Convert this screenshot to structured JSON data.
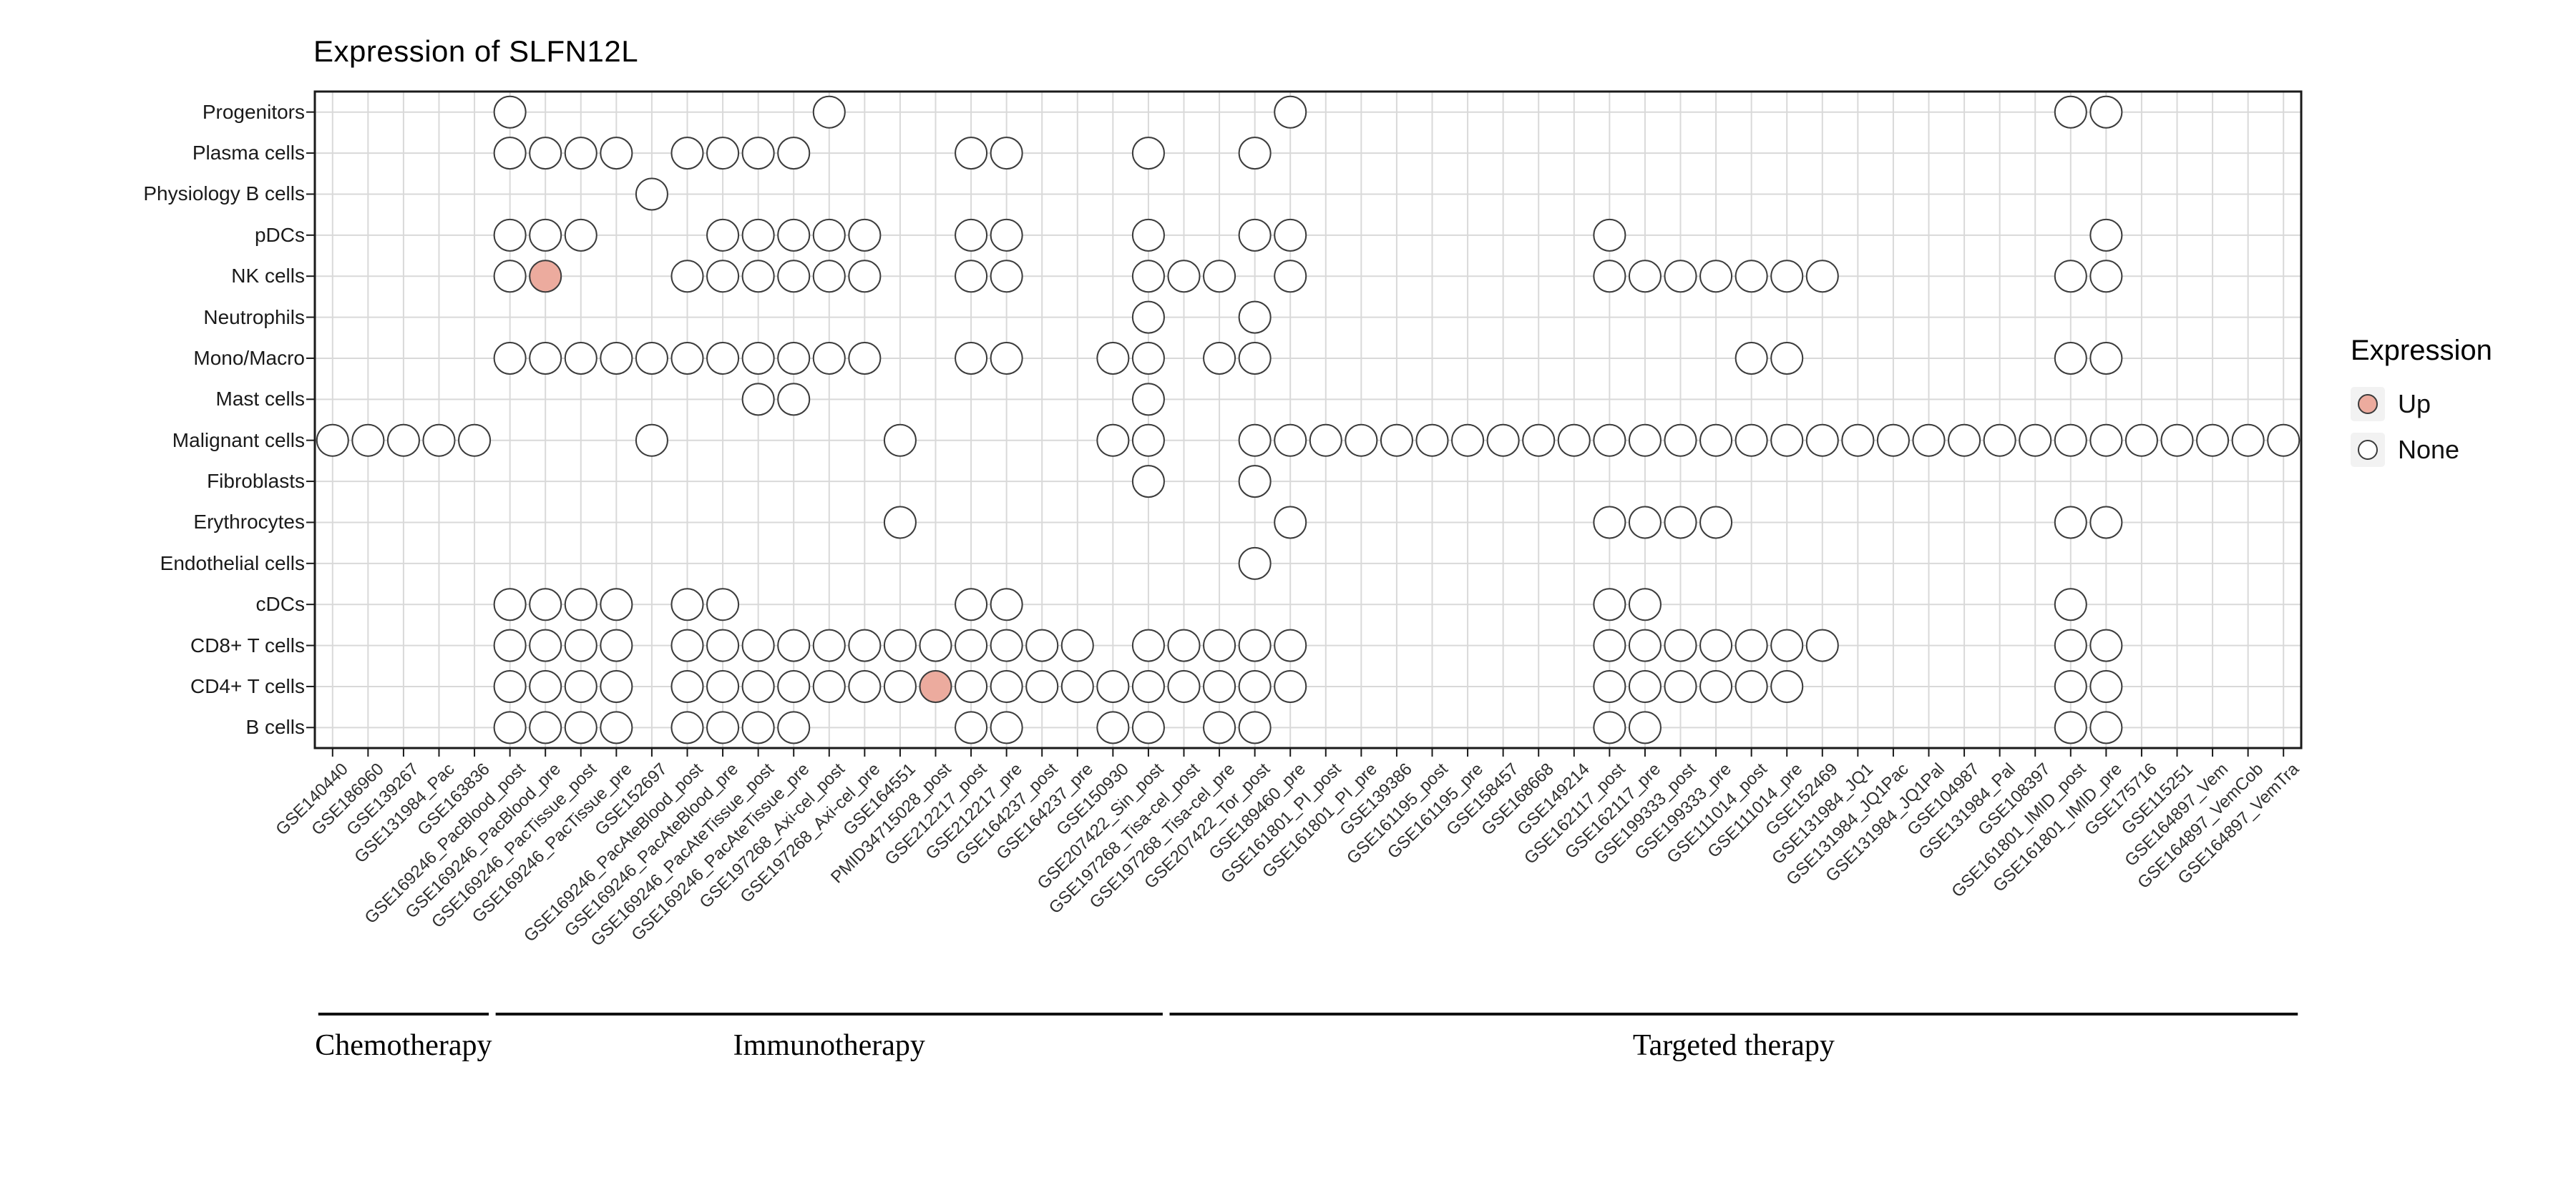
{
  "chart_data": {
    "type": "scatter",
    "subtype": "categorical-dot-matrix",
    "title": "Expression of SLFN12L",
    "legend": {
      "title": "Expression",
      "position": "right",
      "items": [
        {
          "label": "Up",
          "color": "#ecab9e"
        },
        {
          "label": "None",
          "color": "#ffffff"
        }
      ]
    },
    "rows": [
      "Progenitors",
      "Plasma cells",
      "Physiology B cells",
      "pDCs",
      "NK cells",
      "Neutrophils",
      "Mono/Macro",
      "Mast cells",
      "Malignant cells",
      "Fibroblasts",
      "Erythrocytes",
      "Endothelial cells",
      "cDCs",
      "CD8+ T cells",
      "CD4+ T cells",
      "B cells"
    ],
    "columns": [
      "GSE140440",
      "GSE186960",
      "GSE139267",
      "GSE131984_Pac",
      "GSE163836",
      "GSE169246_PacBlood_post",
      "GSE169246_PacBlood_pre",
      "GSE169246_PacTissue_post",
      "GSE169246_PacTissue_pre",
      "GSE152697",
      "GSE169246_PacAteBlood_post",
      "GSE169246_PacAteBlood_pre",
      "GSE169246_PacAteTissue_post",
      "GSE169246_PacAteTissue_pre",
      "GSE197268_Axi-cel_post",
      "GSE197268_Axi-cel_pre",
      "GSE164551",
      "PMID34715028_post",
      "GSE212217_post",
      "GSE212217_pre",
      "GSE164237_post",
      "GSE164237_pre",
      "GSE150930",
      "GSE207422_Sin_post",
      "GSE197268_Tisa-cel_post",
      "GSE197268_Tisa-cel_pre",
      "GSE207422_Tor_post",
      "GSE189460_pre",
      "GSE161801_PI_post",
      "GSE161801_PI_pre",
      "GSE139386",
      "GSE161195_post",
      "GSE161195_pre",
      "GSE158457",
      "GSE168668",
      "GSE149214",
      "GSE162117_post",
      "GSE162117_pre",
      "GSE199333_post",
      "GSE199333_pre",
      "GSE111014_post",
      "GSE111014_pre",
      "GSE152469",
      "GSE131984_JQ1",
      "GSE131984_JQ1Pac",
      "GSE131984_JQ1Pal",
      "GSE104987",
      "GSE131984_Pal",
      "GSE108397",
      "GSE161801_IMID_post",
      "GSE161801_IMID_pre",
      "GSE175716",
      "GSE115251",
      "GSE164897_Vem",
      "GSE164897_VemCob",
      "GSE164897_VemTra"
    ],
    "groups": [
      {
        "label": "Chemotherapy",
        "start": 0,
        "end": 4
      },
      {
        "label": "Immunotherapy",
        "start": 5,
        "end": 23
      },
      {
        "label": "Targeted therapy",
        "start": 24,
        "end": 55
      }
    ],
    "dots": [
      {
        "row": "Progenitors",
        "none": [
          5,
          14,
          27,
          49,
          50
        ],
        "up": []
      },
      {
        "row": "Plasma cells",
        "none": [
          5,
          6,
          7,
          8,
          10,
          11,
          12,
          13,
          18,
          19,
          23,
          26
        ],
        "up": []
      },
      {
        "row": "Physiology B cells",
        "none": [
          9
        ],
        "up": []
      },
      {
        "row": "pDCs",
        "none": [
          5,
          6,
          7,
          11,
          12,
          13,
          14,
          15,
          18,
          19,
          23,
          26,
          27,
          36,
          50
        ],
        "up": []
      },
      {
        "row": "NK cells",
        "none": [
          5,
          10,
          11,
          12,
          13,
          14,
          15,
          18,
          19,
          23,
          24,
          25,
          27,
          36,
          37,
          38,
          39,
          40,
          41,
          42,
          49,
          50
        ],
        "up": [
          6
        ]
      },
      {
        "row": "Neutrophils",
        "none": [
          23,
          26
        ],
        "up": []
      },
      {
        "row": "Mono/Macro",
        "none": [
          5,
          6,
          7,
          8,
          9,
          10,
          11,
          12,
          13,
          14,
          15,
          18,
          19,
          22,
          23,
          25,
          26,
          40,
          41,
          49,
          50
        ],
        "up": []
      },
      {
        "row": "Mast cells",
        "none": [
          12,
          13,
          23
        ],
        "up": []
      },
      {
        "row": "Malignant cells",
        "none": [
          0,
          1,
          2,
          3,
          4,
          9,
          16,
          22,
          23,
          26,
          27,
          28,
          29,
          30,
          31,
          32,
          33,
          34,
          35,
          36,
          37,
          38,
          39,
          40,
          41,
          42,
          43,
          44,
          45,
          46,
          47,
          48,
          49,
          50,
          51,
          52,
          53,
          54,
          55
        ],
        "up": []
      },
      {
        "row": "Fibroblasts",
        "none": [
          23,
          26
        ],
        "up": []
      },
      {
        "row": "Erythrocytes",
        "none": [
          16,
          27,
          36,
          37,
          38,
          39,
          49,
          50
        ],
        "up": []
      },
      {
        "row": "Endothelial cells",
        "none": [
          26
        ],
        "up": []
      },
      {
        "row": "cDCs",
        "none": [
          5,
          6,
          7,
          8,
          10,
          11,
          18,
          19,
          36,
          37,
          49
        ],
        "up": []
      },
      {
        "row": "CD8+ T cells",
        "none": [
          5,
          6,
          7,
          8,
          10,
          11,
          12,
          13,
          14,
          15,
          16,
          17,
          18,
          19,
          20,
          21,
          23,
          24,
          25,
          26,
          27,
          36,
          37,
          38,
          39,
          40,
          41,
          42,
          49,
          50
        ],
        "up": []
      },
      {
        "row": "CD4+ T cells",
        "none": [
          5,
          6,
          7,
          8,
          10,
          11,
          12,
          13,
          14,
          15,
          16,
          18,
          19,
          20,
          21,
          22,
          23,
          24,
          25,
          26,
          27,
          36,
          37,
          38,
          39,
          40,
          41,
          49,
          50
        ],
        "up": [
          17
        ]
      },
      {
        "row": "B cells",
        "none": [
          5,
          6,
          7,
          8,
          10,
          11,
          12,
          13,
          18,
          19,
          22,
          23,
          25,
          26,
          36,
          37,
          49,
          50
        ],
        "up": []
      }
    ],
    "style": {
      "up_fill": "#ecab9e",
      "none_fill": "#ffffff",
      "dot_stroke": "#3c3c3c",
      "grid_color": "#d9d9d9",
      "border_color": "#1a1a1a"
    }
  }
}
